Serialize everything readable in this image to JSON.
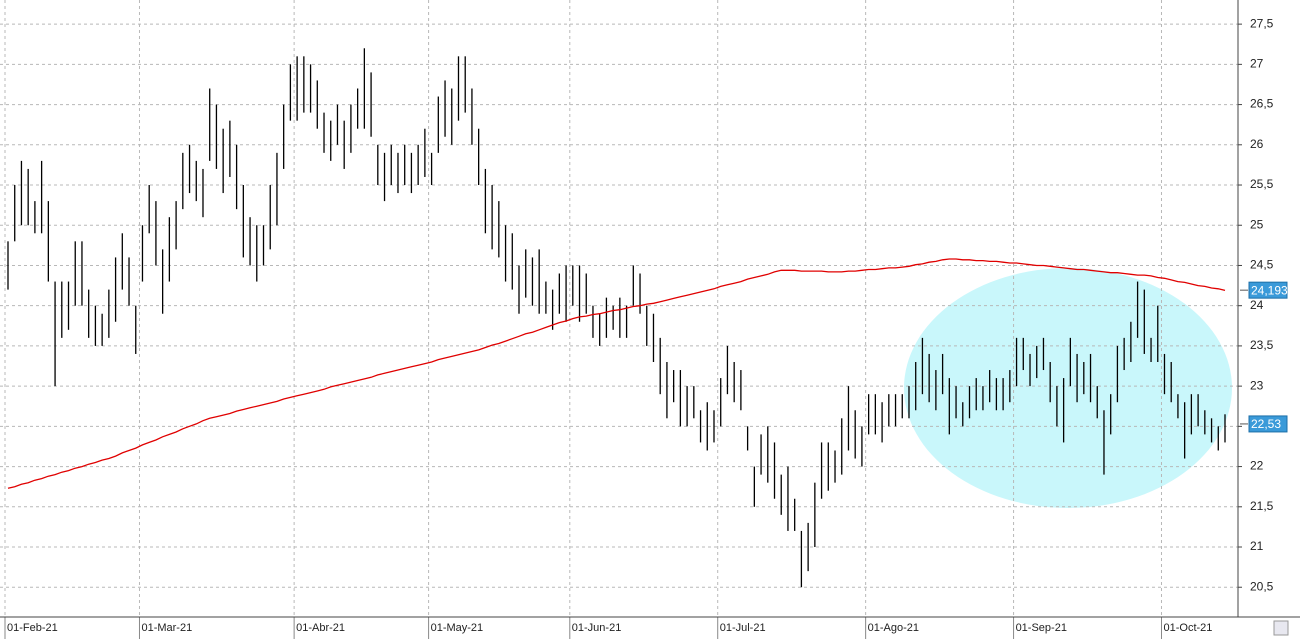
{
  "chart_data": {
    "type": "ohlc",
    "categories": [
      "01-Feb-21",
      null,
      null,
      null,
      null,
      null,
      null,
      null,
      null,
      null,
      null,
      null,
      null,
      null,
      null,
      null,
      null,
      null,
      null,
      null,
      "01-Mar-21",
      null,
      null,
      null,
      null,
      null,
      null,
      null,
      null,
      null,
      null,
      null,
      null,
      null,
      null,
      null,
      null,
      null,
      null,
      null,
      null,
      null,
      null,
      "01-Abr-21",
      null,
      null,
      null,
      null,
      null,
      null,
      null,
      null,
      null,
      null,
      null,
      null,
      null,
      null,
      null,
      null,
      null,
      null,
      null,
      "01-May-21",
      null,
      null,
      null,
      null,
      null,
      null,
      null,
      null,
      null,
      null,
      null,
      null,
      null,
      null,
      null,
      null,
      null,
      null,
      null,
      null,
      "01-Jun-21",
      null,
      null,
      null,
      null,
      null,
      null,
      null,
      null,
      null,
      null,
      null,
      null,
      null,
      null,
      null,
      null,
      null,
      null,
      null,
      null,
      null,
      "01-Jul-21",
      null,
      null,
      null,
      null,
      null,
      null,
      null,
      null,
      null,
      null,
      null,
      null,
      null,
      null,
      null,
      null,
      null,
      null,
      null,
      null,
      null,
      "01-Ago-21",
      null,
      null,
      null,
      null,
      null,
      null,
      null,
      null,
      null,
      null,
      null,
      null,
      null,
      null,
      null,
      null,
      null,
      null,
      null,
      null,
      null,
      "01-Sep-21",
      null,
      null,
      null,
      null,
      null,
      null,
      null,
      null,
      null,
      null,
      null,
      null,
      null,
      null,
      null,
      null,
      null,
      null,
      null,
      null,
      null,
      "01-Oct-21",
      null,
      null,
      null,
      null,
      null,
      null,
      null,
      null,
      null
    ],
    "high": [
      24.8,
      25.5,
      25.8,
      25.7,
      25.3,
      25.8,
      25.3,
      24.3,
      24.3,
      24.3,
      24.8,
      24.8,
      24.2,
      24.0,
      23.9,
      24.2,
      24.6,
      24.9,
      24.6,
      24.0,
      25.0,
      25.5,
      25.3,
      24.7,
      25.1,
      25.3,
      25.9,
      26.0,
      25.8,
      25.7,
      26.7,
      26.5,
      26.2,
      26.3,
      26.0,
      25.5,
      25.1,
      25.0,
      25.0,
      25.5,
      25.9,
      26.5,
      27.0,
      27.1,
      27.1,
      27.0,
      26.8,
      26.4,
      26.3,
      26.5,
      26.3,
      26.5,
      26.7,
      27.2,
      26.9,
      26.0,
      25.9,
      26.0,
      25.9,
      26.0,
      25.9,
      26.0,
      26.2,
      25.9,
      26.6,
      26.8,
      26.7,
      27.1,
      27.1,
      26.7,
      26.2,
      25.7,
      25.5,
      25.3,
      25.0,
      24.9,
      24.5,
      24.7,
      24.6,
      24.7,
      24.3,
      24.2,
      24.4,
      24.5,
      24.5,
      24.5,
      24.4,
      24.0,
      23.9,
      24.1,
      24.0,
      24.1,
      24.0,
      24.5,
      24.4,
      24.0,
      23.9,
      23.6,
      23.3,
      23.2,
      23.2,
      23.0,
      23.0,
      22.7,
      22.8,
      22.7,
      23.1,
      23.5,
      23.3,
      23.2,
      22.5,
      22.0,
      22.4,
      22.5,
      22.3,
      21.9,
      22.0,
      21.6,
      21.2,
      21.3,
      21.8,
      22.3,
      22.3,
      22.2,
      22.6,
      23.0,
      22.7,
      22.5,
      22.9,
      22.9,
      22.8,
      22.9,
      22.9,
      22.9,
      23.0,
      23.3,
      23.6,
      23.4,
      23.2,
      23.4,
      23.1,
      23.0,
      22.8,
      23.0,
      23.1,
      23.0,
      23.2,
      23.1,
      23.1,
      23.2,
      23.6,
      23.6,
      23.4,
      23.5,
      23.6,
      23.3,
      23.0,
      23.1,
      23.6,
      23.4,
      23.3,
      23.4,
      23.0,
      22.7,
      22.9,
      23.5,
      23.6,
      23.8,
      24.3,
      24.2,
      23.6,
      24.0,
      23.4,
      23.3,
      22.9,
      22.8,
      22.9,
      22.9,
      22.7,
      22.6,
      22.5,
      22.65
    ],
    "low": [
      24.2,
      24.8,
      25.0,
      25.0,
      24.9,
      24.9,
      24.3,
      23.0,
      23.6,
      23.7,
      24.0,
      24.0,
      23.6,
      23.5,
      23.5,
      23.6,
      23.8,
      24.2,
      24.0,
      23.4,
      24.3,
      24.9,
      24.5,
      23.9,
      24.3,
      24.7,
      25.2,
      25.4,
      25.3,
      25.1,
      25.8,
      25.7,
      25.4,
      25.6,
      25.2,
      24.6,
      24.5,
      24.3,
      24.5,
      24.7,
      25.0,
      25.7,
      26.3,
      26.3,
      26.4,
      26.4,
      26.2,
      25.9,
      25.8,
      26.0,
      25.7,
      25.9,
      26.2,
      26.2,
      26.1,
      25.5,
      25.3,
      25.5,
      25.4,
      25.5,
      25.4,
      25.5,
      25.6,
      25.5,
      25.9,
      26.1,
      26.0,
      26.3,
      26.4,
      26.0,
      25.5,
      24.9,
      24.7,
      24.6,
      24.3,
      24.2,
      23.9,
      24.1,
      24.0,
      23.9,
      23.9,
      23.7,
      23.9,
      23.8,
      24.0,
      23.8,
      23.9,
      23.6,
      23.5,
      23.6,
      23.7,
      23.6,
      23.6,
      24.0,
      23.9,
      23.5,
      23.3,
      22.9,
      22.6,
      22.8,
      22.5,
      22.5,
      22.6,
      22.3,
      22.2,
      22.3,
      22.5,
      22.9,
      22.8,
      22.7,
      22.2,
      21.5,
      21.9,
      21.8,
      21.6,
      21.4,
      21.2,
      21.2,
      20.5,
      20.7,
      21.0,
      21.6,
      21.7,
      21.8,
      21.9,
      22.2,
      22.1,
      22.0,
      22.4,
      22.4,
      22.3,
      22.5,
      22.5,
      22.6,
      22.6,
      22.7,
      22.9,
      22.8,
      22.7,
      22.9,
      22.4,
      22.6,
      22.5,
      22.6,
      22.7,
      22.7,
      22.8,
      22.7,
      22.7,
      22.8,
      23.0,
      23.2,
      23.0,
      23.1,
      23.2,
      22.8,
      22.5,
      22.3,
      23.0,
      22.8,
      22.9,
      22.8,
      22.6,
      21.9,
      22.4,
      22.8,
      23.2,
      23.3,
      23.6,
      23.4,
      23.3,
      23.3,
      22.9,
      22.8,
      22.6,
      22.1,
      22.4,
      22.5,
      22.4,
      22.3,
      22.2,
      22.3
    ],
    "bar_color": "#000000",
    "ma_color": "#e00000",
    "ma_values": [
      21.73,
      21.75,
      21.78,
      21.8,
      21.83,
      21.85,
      21.88,
      21.9,
      21.93,
      21.95,
      21.98,
      22.0,
      22.03,
      22.05,
      22.08,
      22.1,
      22.13,
      22.17,
      22.2,
      22.23,
      22.27,
      22.3,
      22.33,
      22.37,
      22.4,
      22.43,
      22.47,
      22.5,
      22.53,
      22.57,
      22.6,
      22.62,
      22.64,
      22.66,
      22.69,
      22.71,
      22.73,
      22.75,
      22.77,
      22.79,
      22.81,
      22.84,
      22.86,
      22.88,
      22.9,
      22.92,
      22.94,
      22.96,
      22.99,
      23.01,
      23.03,
      23.05,
      23.07,
      23.09,
      23.11,
      23.14,
      23.16,
      23.18,
      23.2,
      23.22,
      23.24,
      23.26,
      23.28,
      23.3,
      23.33,
      23.35,
      23.37,
      23.39,
      23.41,
      23.43,
      23.45,
      23.48,
      23.51,
      23.53,
      23.56,
      23.59,
      23.62,
      23.65,
      23.67,
      23.7,
      23.73,
      23.76,
      23.79,
      23.81,
      23.84,
      23.86,
      23.87,
      23.89,
      23.9,
      23.92,
      23.94,
      23.95,
      23.97,
      23.99,
      24.0,
      24.02,
      24.03,
      24.05,
      24.07,
      24.09,
      24.11,
      24.13,
      24.15,
      24.17,
      24.19,
      24.21,
      24.24,
      24.26,
      24.28,
      24.3,
      24.33,
      24.35,
      24.37,
      24.39,
      24.42,
      24.44,
      24.44,
      24.44,
      24.43,
      24.43,
      24.43,
      24.43,
      24.42,
      24.42,
      24.42,
      24.43,
      24.43,
      24.44,
      24.45,
      24.45,
      24.46,
      24.47,
      24.47,
      24.48,
      24.49,
      24.51,
      24.52,
      24.54,
      24.55,
      24.57,
      24.58,
      24.58,
      24.57,
      24.57,
      24.56,
      24.56,
      24.55,
      24.55,
      24.54,
      24.53,
      24.53,
      24.52,
      24.51,
      24.5,
      24.5,
      24.49,
      24.48,
      24.47,
      24.46,
      24.45,
      24.45,
      24.44,
      24.43,
      24.42,
      24.41,
      24.41,
      24.4,
      24.39,
      24.38,
      24.38,
      24.37,
      24.35,
      24.34,
      24.32,
      24.3,
      24.29,
      24.27,
      24.25,
      24.24,
      24.22,
      24.21,
      24.19
    ],
    "ma_last": {
      "value": 24.193,
      "label": "24,193"
    },
    "last": {
      "value": 22.53,
      "label": "22,53"
    },
    "label_color": "#3a9ad9",
    "ylim": [
      20.13,
      27.8
    ],
    "yticks": [
      {
        "value": 20.5,
        "label": "20,5"
      },
      21,
      {
        "value": 21.5,
        "label": "21,5"
      },
      22,
      {
        "value": 22.5,
        "label": "22,5"
      },
      23,
      {
        "value": 23.5,
        "label": "23,5"
      },
      24,
      {
        "value": 24.5,
        "label": "24,5"
      },
      25,
      {
        "value": 25.5,
        "label": "25,5"
      },
      26,
      {
        "value": 26.5,
        "label": "26,5"
      },
      27,
      {
        "value": 27.5,
        "label": "27,5"
      }
    ],
    "grid": true
  }
}
